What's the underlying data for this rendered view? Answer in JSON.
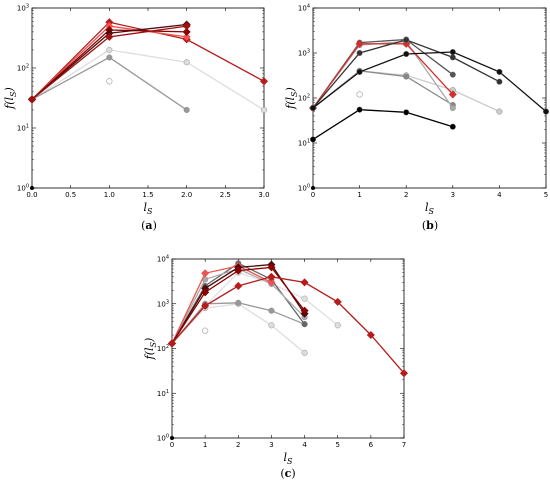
{
  "figure": {
    "panel_labels": [
      "(a)",
      "(b)",
      "(c)"
    ]
  },
  "chart_data": [
    {
      "id": "a",
      "type": "line",
      "panel_label": "(a)",
      "xlabel": "l_S",
      "ylabel": "f(l_S)",
      "yscale": "log",
      "xlim": [
        0.0,
        3.0
      ],
      "ylim": [
        1,
        1000
      ],
      "xticks": [
        "0.0",
        "0.5",
        "1.0",
        "1.5",
        "2.0",
        "2.5",
        "3.0"
      ],
      "xtick_values": [
        0,
        0.5,
        1,
        1.5,
        2,
        2.5,
        3
      ],
      "ytick_values": [
        1,
        10,
        100,
        1000
      ],
      "ytick_exponents": [
        "0",
        "1",
        "2",
        "3"
      ],
      "series": [
        {
          "x": [
            0,
            1
          ],
          "y": [
            30,
            60
          ],
          "color": "#e8e8e8",
          "marker": "circle_open",
          "line": false
        },
        {
          "x": [
            0,
            1,
            2,
            3
          ],
          "y": [
            30,
            200,
            125,
            20
          ],
          "color": "#dddddd",
          "marker": "circle"
        },
        {
          "x": [
            0,
            1,
            2
          ],
          "y": [
            30,
            150,
            20
          ],
          "color": "#999999",
          "marker": "circle"
        },
        {
          "x": [
            0,
            1,
            2,
            3
          ],
          "y": [
            30,
            580,
            300,
            60
          ],
          "color": "#b71c1c",
          "marker": "diamond"
        },
        {
          "x": [
            0,
            1,
            2
          ],
          "y": [
            30,
            500,
            330
          ],
          "color": "#ef5350",
          "marker": "diamond"
        },
        {
          "x": [
            0,
            1,
            2
          ],
          "y": [
            30,
            430,
            400
          ],
          "color": "#8b0000",
          "marker": "diamond"
        },
        {
          "x": [
            0,
            1,
            2
          ],
          "y": [
            30,
            380,
            530
          ],
          "color": "#4a0d0d",
          "marker": "diamond"
        },
        {
          "x": [
            0,
            1,
            2
          ],
          "y": [
            30,
            330,
            500
          ],
          "color": "#a01010",
          "marker": "diamond"
        }
      ]
    },
    {
      "id": "b",
      "type": "line",
      "panel_label": "(b)",
      "xlabel": "l_S",
      "ylabel": "f(l_S)",
      "yscale": "log",
      "xlim": [
        0,
        5
      ],
      "ylim": [
        1,
        10000
      ],
      "xticks": [
        "0",
        "1",
        "2",
        "3",
        "4",
        "5"
      ],
      "xtick_values": [
        0,
        1,
        2,
        3,
        4,
        5
      ],
      "ytick_values": [
        1,
        10,
        100,
        1000,
        10000
      ],
      "ytick_exponents": [
        "0",
        "1",
        "2",
        "3",
        "4"
      ],
      "series": [
        {
          "x": [
            0,
            1
          ],
          "y": [
            60,
            120
          ],
          "color": "#e8e8e8",
          "marker": "circle_open",
          "line": false
        },
        {
          "x": [
            0,
            1,
            2,
            3,
            4
          ],
          "y": [
            60,
            400,
            320,
            150,
            50
          ],
          "color": "#cccccc",
          "marker": "circle"
        },
        {
          "x": [
            0,
            1,
            2,
            3
          ],
          "y": [
            60,
            400,
            300,
            70
          ],
          "color": "#888888",
          "marker": "circle"
        },
        {
          "x": [
            0,
            1,
            2,
            3
          ],
          "y": [
            60,
            1700,
            2000,
            330
          ],
          "color": "#555555",
          "marker": "circle"
        },
        {
          "x": [
            0,
            1,
            2,
            3
          ],
          "y": [
            60,
            1500,
            1800,
            60
          ],
          "color": "#aaaaaa",
          "marker": "circle"
        },
        {
          "x": [
            0,
            1,
            2,
            3
          ],
          "y": [
            60,
            1600,
            1600,
            120
          ],
          "color": "#d32f2f",
          "marker": "diamond"
        },
        {
          "x": [
            0,
            1,
            2,
            3,
            4
          ],
          "y": [
            60,
            1000,
            1950,
            800,
            230
          ],
          "color": "#333333",
          "marker": "circle"
        },
        {
          "x": [
            0,
            1,
            2,
            3,
            4,
            5
          ],
          "y": [
            60,
            380,
            950,
            1050,
            380,
            50
          ],
          "color": "#111111",
          "marker": "circle"
        },
        {
          "x": [
            0,
            1,
            2,
            3
          ],
          "y": [
            12,
            55,
            48,
            23
          ],
          "color": "#000000",
          "marker": "circle"
        }
      ]
    },
    {
      "id": "c",
      "type": "line",
      "panel_label": "(c)",
      "xlabel": "l_S",
      "ylabel": "f(l_S)",
      "yscale": "log",
      "xlim": [
        0,
        7
      ],
      "ylim": [
        1,
        10000
      ],
      "xticks": [
        "0",
        "1",
        "2",
        "3",
        "4",
        "5",
        "6",
        "7"
      ],
      "xtick_values": [
        0,
        1,
        2,
        3,
        4,
        5,
        6,
        7
      ],
      "ytick_values": [
        1,
        10,
        100,
        1000,
        10000
      ],
      "ytick_exponents": [
        "0",
        "1",
        "2",
        "3",
        "4"
      ],
      "series": [
        {
          "x": [
            0,
            1
          ],
          "y": [
            130,
            250
          ],
          "color": "#e8e8e8",
          "marker": "circle_open",
          "line": false
        },
        {
          "x": [
            0,
            1,
            2,
            3,
            4
          ],
          "y": [
            130,
            800,
            1000,
            330,
            80
          ],
          "color": "#dddddd",
          "marker": "circle"
        },
        {
          "x": [
            0,
            1,
            2,
            3,
            4,
            5
          ],
          "y": [
            130,
            900,
            5000,
            2800,
            1300,
            330
          ],
          "color": "#e0e0e0",
          "marker": "circle"
        },
        {
          "x": [
            0,
            1,
            2,
            3,
            4
          ],
          "y": [
            130,
            1000,
            1050,
            700,
            350
          ],
          "color": "#999999",
          "marker": "circle"
        },
        {
          "x": [
            0,
            1,
            2,
            3,
            4
          ],
          "y": [
            130,
            2500,
            8000,
            3500,
            350
          ],
          "color": "#666666",
          "marker": "circle"
        },
        {
          "x": [
            0,
            1,
            2,
            3,
            4
          ],
          "y": [
            130,
            3500,
            6000,
            2800,
            500
          ],
          "color": "#aaaaaa",
          "marker": "circle"
        },
        {
          "x": [
            0,
            1,
            2,
            3
          ],
          "y": [
            130,
            4800,
            7000,
            3000
          ],
          "color": "#ef5350",
          "marker": "diamond"
        },
        {
          "x": [
            0,
            1,
            2,
            3,
            4
          ],
          "y": [
            130,
            2200,
            6500,
            7500,
            600
          ],
          "color": "#4a0d0d",
          "marker": "diamond"
        },
        {
          "x": [
            0,
            1,
            2,
            3,
            4
          ],
          "y": [
            130,
            1800,
            5500,
            6500,
            700
          ],
          "color": "#8b0000",
          "marker": "diamond"
        },
        {
          "x": [
            0,
            1,
            2,
            3,
            4,
            5,
            6,
            7
          ],
          "y": [
            130,
            900,
            2500,
            4000,
            3000,
            1100,
            200,
            28
          ],
          "color": "#b71c1c",
          "marker": "diamond"
        }
      ]
    }
  ]
}
